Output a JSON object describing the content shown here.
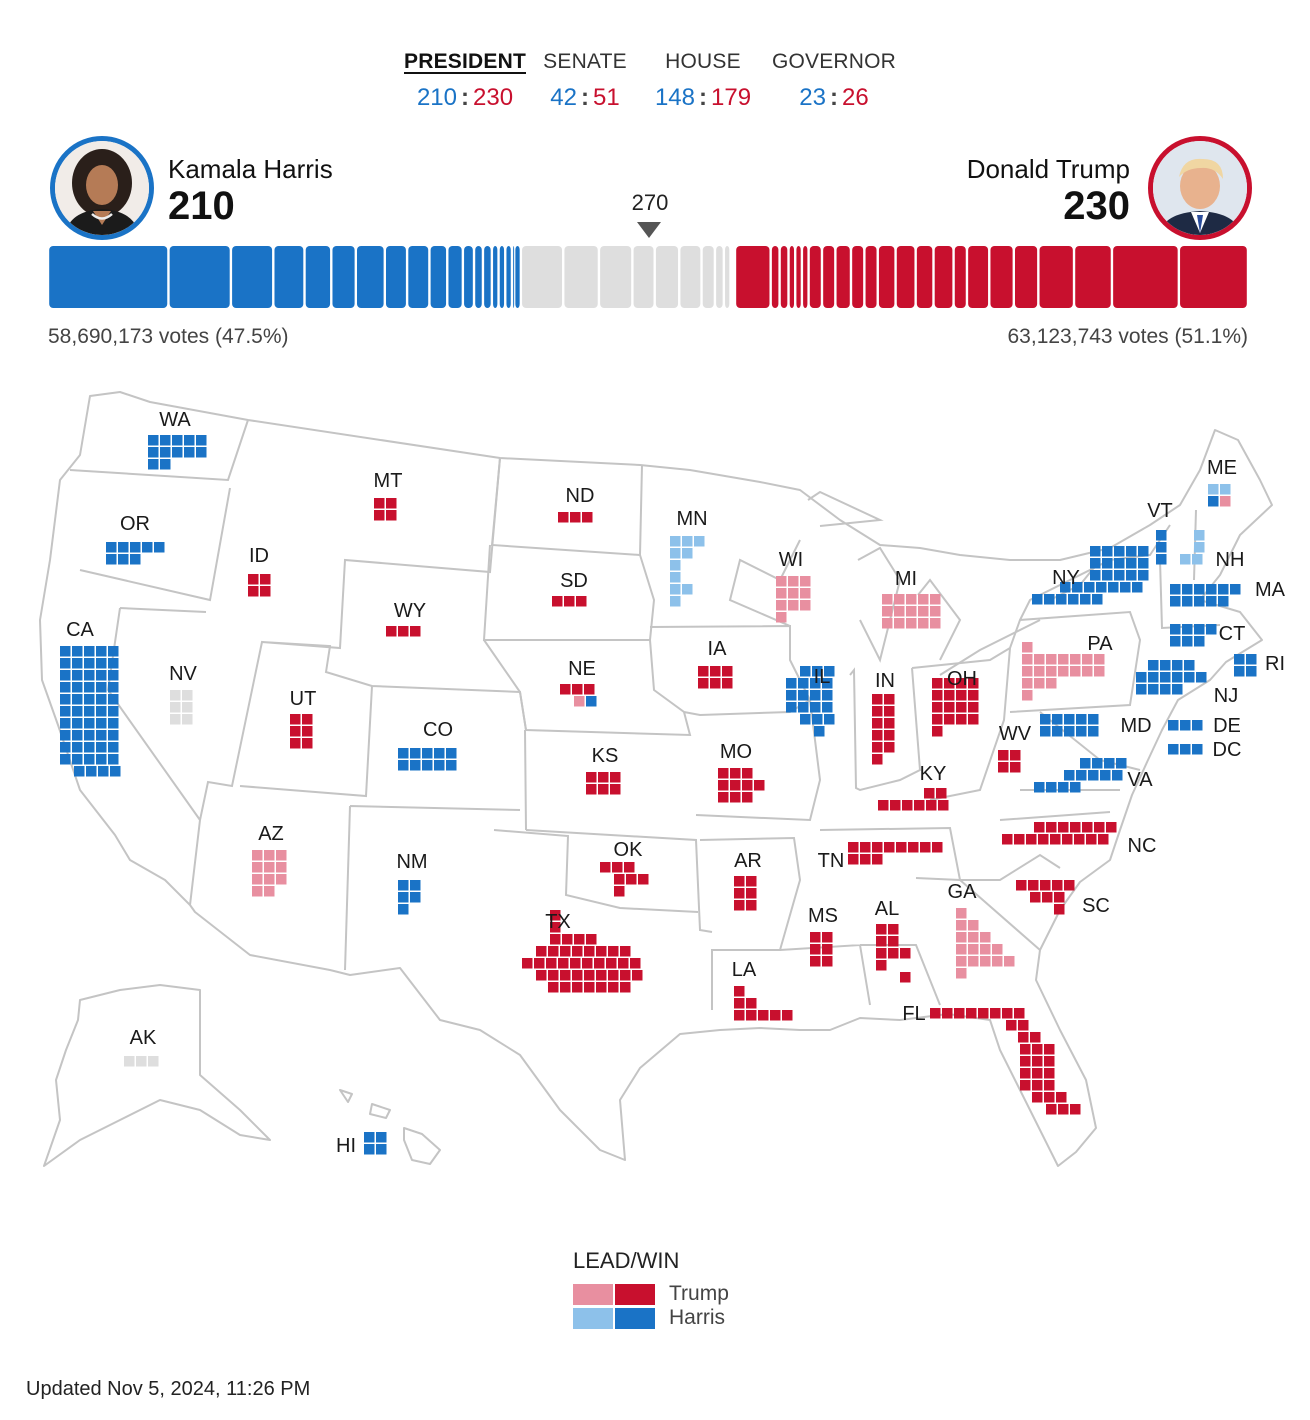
{
  "tabs": [
    {
      "label": "PRESIDENT",
      "dem": "210",
      "rep": "230",
      "active": true
    },
    {
      "label": "SENATE",
      "dem": "42",
      "rep": "51",
      "active": false
    },
    {
      "label": "HOUSE",
      "dem": "148",
      "rep": "179",
      "active": false
    },
    {
      "label": "GOVERNOR",
      "dem": "23",
      "rep": "26",
      "active": false
    }
  ],
  "score_separator": ":",
  "candidates": {
    "dem": {
      "name": "Kamala Harris",
      "ev": "210",
      "votes": "58,690,173 votes (47.5%)"
    },
    "rep": {
      "name": "Donald Trump",
      "ev": "230",
      "votes": "63,123,743 votes (51.1%)"
    }
  },
  "threshold": "270",
  "total_ev": 538,
  "colors": {
    "dem_win": "#1a73c6",
    "dem_lead": "#8dc1ea",
    "rep_win": "#c8102e",
    "rep_lead": "#e88fa0",
    "undecided": "#dedede",
    "border": "#c4c4c4"
  },
  "states": [
    {
      "code": "WA",
      "ev": 12,
      "status": "dem_win"
    },
    {
      "code": "OR",
      "ev": 8,
      "status": "dem_win"
    },
    {
      "code": "CA",
      "ev": 54,
      "status": "dem_win"
    },
    {
      "code": "NV",
      "ev": 6,
      "status": "undecided"
    },
    {
      "code": "ID",
      "ev": 4,
      "status": "rep_win"
    },
    {
      "code": "MT",
      "ev": 4,
      "status": "rep_win"
    },
    {
      "code": "WY",
      "ev": 3,
      "status": "rep_win"
    },
    {
      "code": "UT",
      "ev": 6,
      "status": "rep_win"
    },
    {
      "code": "CO",
      "ev": 10,
      "status": "dem_win"
    },
    {
      "code": "AZ",
      "ev": 11,
      "status": "rep_lead"
    },
    {
      "code": "NM",
      "ev": 5,
      "status": "dem_win"
    },
    {
      "code": "ND",
      "ev": 3,
      "status": "rep_win"
    },
    {
      "code": "SD",
      "ev": 3,
      "status": "rep_win"
    },
    {
      "code": "NE",
      "ev": 5,
      "status": "split",
      "split": [
        [
          "rep_win",
          3
        ],
        [
          "rep_lead",
          1
        ],
        [
          "dem_win",
          1
        ]
      ]
    },
    {
      "code": "KS",
      "ev": 6,
      "status": "rep_win"
    },
    {
      "code": "OK",
      "ev": 7,
      "status": "rep_win"
    },
    {
      "code": "TX",
      "ev": 40,
      "status": "rep_win"
    },
    {
      "code": "MN",
      "ev": 10,
      "status": "dem_lead"
    },
    {
      "code": "IA",
      "ev": 6,
      "status": "rep_win"
    },
    {
      "code": "MO",
      "ev": 10,
      "status": "rep_win"
    },
    {
      "code": "AR",
      "ev": 6,
      "status": "rep_win"
    },
    {
      "code": "LA",
      "ev": 8,
      "status": "rep_win"
    },
    {
      "code": "WI",
      "ev": 10,
      "status": "rep_lead"
    },
    {
      "code": "IL",
      "ev": 19,
      "status": "dem_win"
    },
    {
      "code": "MS",
      "ev": 6,
      "status": "rep_win"
    },
    {
      "code": "MI",
      "ev": 15,
      "status": "rep_lead"
    },
    {
      "code": "IN",
      "ev": 11,
      "status": "rep_win"
    },
    {
      "code": "OH",
      "ev": 17,
      "status": "rep_win"
    },
    {
      "code": "KY",
      "ev": 8,
      "status": "rep_win"
    },
    {
      "code": "TN",
      "ev": 11,
      "status": "rep_win"
    },
    {
      "code": "AL",
      "ev": 9,
      "status": "rep_win"
    },
    {
      "code": "GA",
      "ev": 16,
      "status": "rep_lead"
    },
    {
      "code": "FL",
      "ev": 30,
      "status": "rep_win"
    },
    {
      "code": "SC",
      "ev": 9,
      "status": "rep_win"
    },
    {
      "code": "NC",
      "ev": 16,
      "status": "rep_win"
    },
    {
      "code": "WV",
      "ev": 4,
      "status": "rep_win"
    },
    {
      "code": "VA",
      "ev": 13,
      "status": "dem_win"
    },
    {
      "code": "MD",
      "ev": 10,
      "status": "dem_win"
    },
    {
      "code": "DE",
      "ev": 3,
      "status": "dem_win"
    },
    {
      "code": "DC",
      "ev": 3,
      "status": "dem_win"
    },
    {
      "code": "PA",
      "ev": 19,
      "status": "rep_lead"
    },
    {
      "code": "NJ",
      "ev": 14,
      "status": "dem_win"
    },
    {
      "code": "NY",
      "ev": 28,
      "status": "dem_win"
    },
    {
      "code": "CT",
      "ev": 7,
      "status": "dem_win"
    },
    {
      "code": "RI",
      "ev": 4,
      "status": "dem_win"
    },
    {
      "code": "MA",
      "ev": 11,
      "status": "dem_win"
    },
    {
      "code": "VT",
      "ev": 3,
      "status": "dem_win"
    },
    {
      "code": "NH",
      "ev": 4,
      "status": "dem_lead"
    },
    {
      "code": "ME",
      "ev": 4,
      "status": "split",
      "split": [
        [
          "dem_lead",
          2
        ],
        [
          "dem_win",
          1
        ],
        [
          "rep_lead",
          1
        ]
      ]
    },
    {
      "code": "AK",
      "ev": 3,
      "status": "undecided"
    },
    {
      "code": "HI",
      "ev": 4,
      "status": "dem_win"
    }
  ],
  "legend": {
    "title": "LEAD/WIN",
    "rows": [
      {
        "label": "Trump",
        "lead": "rep_lead",
        "win": "rep_win"
      },
      {
        "label": "Harris",
        "lead": "dem_lead",
        "win": "dem_win"
      }
    ]
  },
  "updated": "Updated Nov 5, 2024, 11:26 PM"
}
